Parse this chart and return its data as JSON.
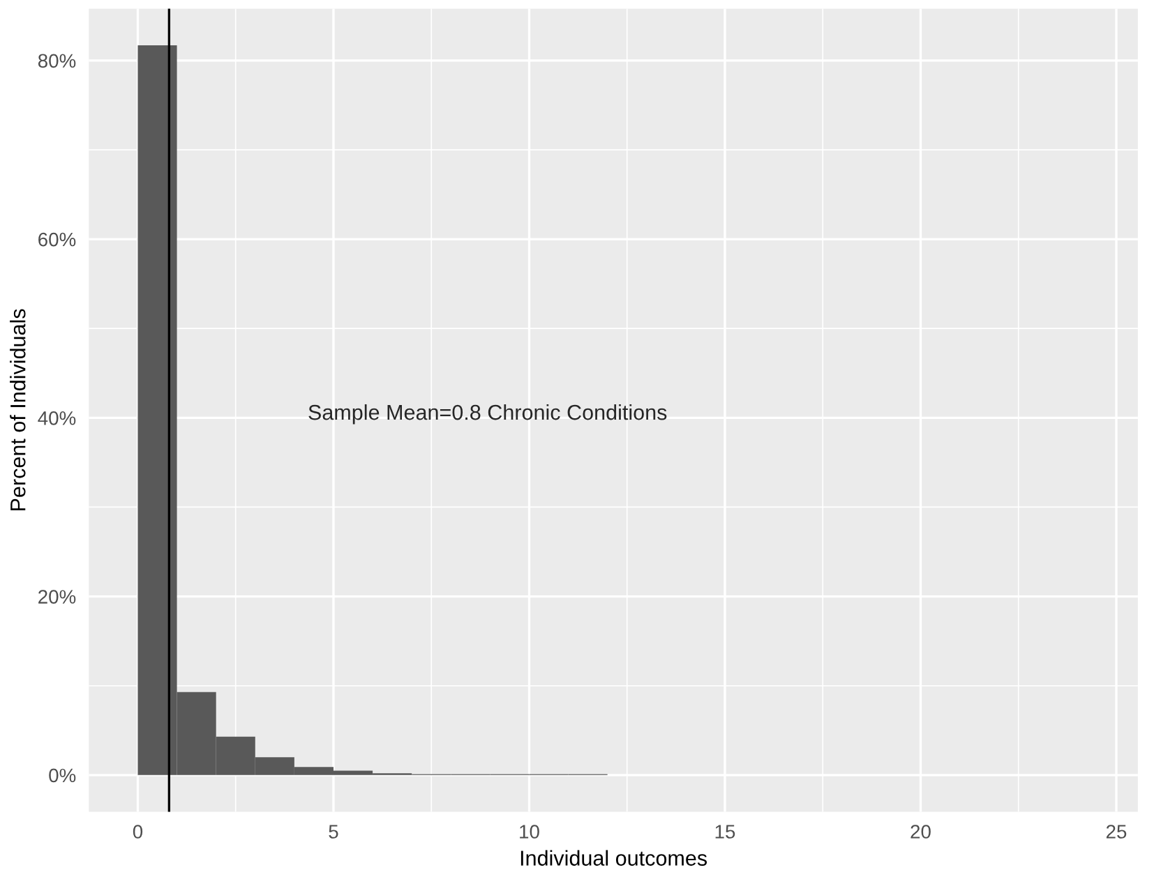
{
  "chart_data": {
    "type": "histogram",
    "xlabel": "Individual outcomes",
    "ylabel": "Percent of Individuals",
    "bins": [
      0,
      1,
      2,
      3,
      4,
      5,
      6,
      7,
      8,
      9,
      10,
      11,
      12
    ],
    "values": [
      81.7,
      9.3,
      4.3,
      2.0,
      0.9,
      0.5,
      0.2,
      0.1,
      0.1,
      0.1,
      0.1,
      0.1
    ],
    "color": "#595959",
    "xlim": [
      -1.25,
      25.55
    ],
    "xticks": [
      0,
      5,
      10,
      15,
      20,
      25
    ],
    "ylim": [
      -4.1,
      85.8
    ],
    "yticks": [
      {
        "value": 0,
        "label": "0%"
      },
      {
        "value": 20,
        "label": "20%"
      },
      {
        "value": 40,
        "label": "40%"
      },
      {
        "value": 60,
        "label": "60%"
      },
      {
        "value": 80,
        "label": "80%"
      }
    ],
    "ref_lines": [
      {
        "axis": "x",
        "value": 0.8,
        "color": "#000000"
      }
    ],
    "annotations": [
      "Sample Mean=0.8 Chronic Conditions"
    ],
    "grid": true
  }
}
